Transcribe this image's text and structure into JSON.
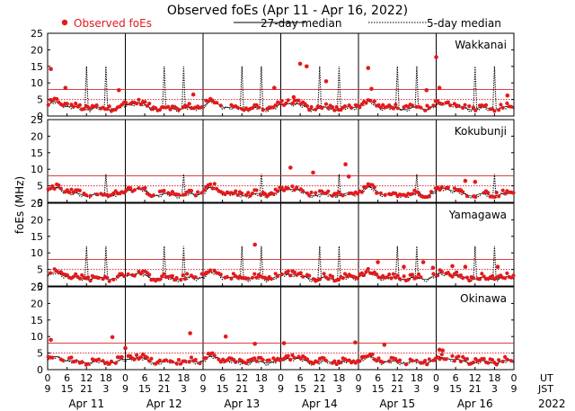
{
  "chart_data": {
    "type": "scatter",
    "title": "Observed foEs (Apr 11 - Apr 16, 2022)",
    "ylabel": "foEs (MHz)",
    "ylim": [
      0,
      25
    ],
    "yticks": [
      0,
      5,
      10,
      15,
      20,
      25
    ],
    "xlim_hours": [
      0,
      144
    ],
    "legend": {
      "observed": "Observed foEs",
      "median27": "27-day median",
      "median5": "5-day median"
    },
    "hour_ticks": {
      "ut": [
        "0",
        "6",
        "12",
        "18",
        "0",
        "6",
        "12",
        "18",
        "0",
        "6",
        "12",
        "18",
        "0",
        "6",
        "12",
        "18",
        "0",
        "6",
        "12",
        "18",
        "0",
        "6",
        "12",
        "18",
        "0"
      ],
      "jst": [
        "9",
        "15",
        "21",
        "3",
        "9",
        "15",
        "21",
        "3",
        "9",
        "15",
        "21",
        "3",
        "9",
        "15",
        "21",
        "3",
        "9",
        "15",
        "21",
        "3",
        "9",
        "15",
        "21",
        "3",
        "9"
      ]
    },
    "ut_label": "UT",
    "jst_label": "JST",
    "year": "2022",
    "days": [
      "Apr 11",
      "Apr 12",
      "Apr 13",
      "Apr 14",
      "Apr 15",
      "Apr 16"
    ],
    "reference_lines": {
      "solid_red": 8,
      "dotted_red": 5
    },
    "stations": [
      {
        "name": "Wakkanai",
        "spikes": [
          12,
          18,
          36,
          42,
          60,
          66,
          84,
          90,
          108,
          114,
          132,
          138
        ],
        "spike_height": 15,
        "outliers": [
          [
            1,
            14.2
          ],
          [
            5.5,
            8.5
          ],
          [
            22,
            7.8
          ],
          [
            45,
            6.5
          ],
          [
            70,
            8.5
          ],
          [
            76,
            5.7
          ],
          [
            78,
            15.8
          ],
          [
            80,
            15
          ],
          [
            86,
            10.5
          ],
          [
            99,
            14.5
          ],
          [
            117,
            7.8
          ],
          [
            120,
            17.8
          ],
          [
            121,
            8.5
          ],
          [
            100,
            8.2
          ],
          [
            142,
            6.2
          ]
        ]
      },
      {
        "name": "Kokubunji",
        "spikes": [
          18,
          42,
          66,
          90,
          114,
          138
        ],
        "spike_height": 8.5,
        "outliers": [
          [
            75,
            10.5
          ],
          [
            82,
            9
          ],
          [
            92,
            11.5
          ],
          [
            93,
            7.8
          ],
          [
            129,
            6.5
          ],
          [
            132,
            6.2
          ]
        ]
      },
      {
        "name": "Yamagawa",
        "spikes": [
          12,
          18,
          36,
          42,
          60,
          66,
          84,
          90,
          108,
          114,
          132,
          138
        ],
        "spike_height": 12,
        "outliers": [
          [
            64,
            12.5
          ],
          [
            102,
            7.2
          ],
          [
            110,
            5.8
          ],
          [
            116,
            7.2
          ],
          [
            119,
            5.5
          ],
          [
            125,
            6
          ],
          [
            129,
            5.8
          ],
          [
            139,
            5.8
          ]
        ]
      },
      {
        "name": "Okinawa",
        "spikes": [],
        "spike_height": 0,
        "outliers": [
          [
            1,
            9
          ],
          [
            20,
            9.8
          ],
          [
            24,
            6.5
          ],
          [
            44,
            11
          ],
          [
            55,
            10
          ],
          [
            64,
            7.8
          ],
          [
            73,
            8
          ],
          [
            95,
            8.2
          ],
          [
            104,
            7.5
          ],
          [
            121,
            6
          ],
          [
            122,
            5.8
          ]
        ]
      }
    ]
  }
}
